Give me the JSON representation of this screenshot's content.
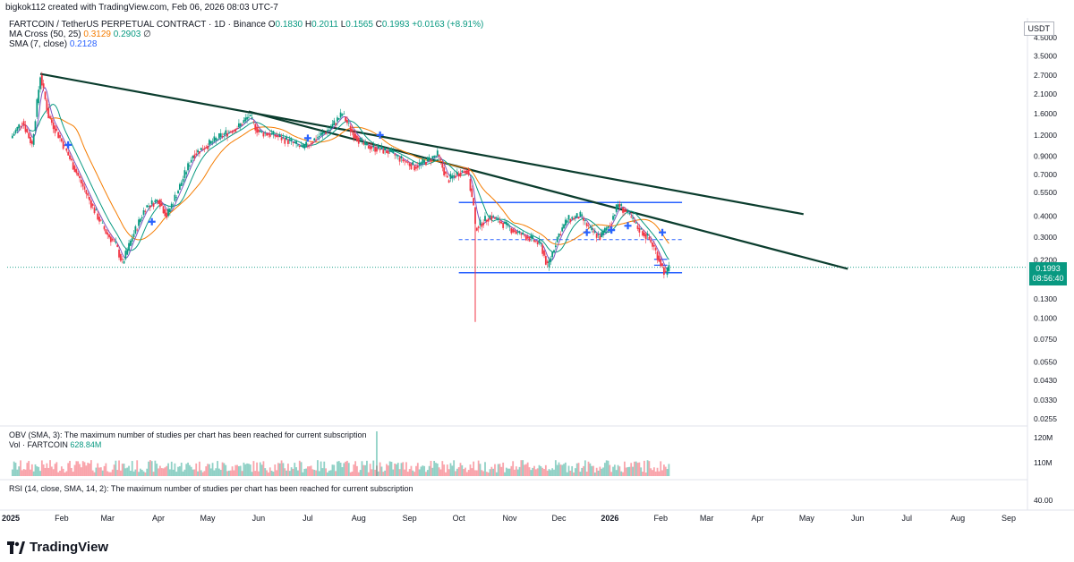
{
  "header": {
    "author": "bigkok112 created with TradingView.com, Feb 06, 2026 08:03 UTC-7"
  },
  "legend": {
    "symbol": "FARTCOIN / TetherUS PERPETUAL CONTRACT · 1D · Binance",
    "o_label": "O",
    "o": "0.1830",
    "h_label": "H",
    "h": "0.2011",
    "l_label": "L",
    "l": "0.1565",
    "c_label": "C",
    "c": "0.1993",
    "change": "+0.0163 (+8.91%)",
    "ma_cross": "MA Cross (50, 25)",
    "ma_a": "0.3129",
    "ma_b": "0.2903",
    "ma_symbol": "∅",
    "sma": "SMA (7, close)",
    "sma_val": "0.2128"
  },
  "currency": "USDT",
  "last_price": "0.1993",
  "countdown": "08:56:40",
  "obv_label": "OBV (SMA, 3): The maximum number of studies per chart has been reached for current subscription",
  "vol_label": "Vol · FARTCOIN",
  "vol_val": "628.84M",
  "rsi_label": "RSI (14, close, SMA, 14, 2): The maximum number of studies per chart has been reached for current subscription",
  "brand": "TradingView",
  "colors": {
    "up": "#089981",
    "down": "#f23645",
    "ma_fast": "#f57c00",
    "ma_slow": "#089981",
    "sma": "#2962ff",
    "trend": "#0b3d2e",
    "level": "#2962ff"
  },
  "chart_data": {
    "type": "line",
    "scale": "log",
    "price_axis": [
      "4.5000",
      "3.5000",
      "2.7000",
      "2.1000",
      "1.6000",
      "1.2000",
      "0.9000",
      "0.7000",
      "0.5500",
      "0.4000",
      "0.3000",
      "0.2200",
      "0.1700",
      "0.1300",
      "0.1000",
      "0.0750",
      "0.0550",
      "0.0430",
      "0.0330",
      "0.0255"
    ],
    "time_axis": [
      "2025",
      "Feb",
      "Mar",
      "Apr",
      "May",
      "Jun",
      "Jul",
      "Aug",
      "Sep",
      "Oct",
      "Nov",
      "Dec",
      "2026",
      "Feb",
      "Mar",
      "Apr",
      "May",
      "Jun",
      "Jul",
      "Aug",
      "Sep"
    ],
    "volume_axis": [
      "120M",
      "110M"
    ],
    "rsi_axis": [
      "40.00"
    ],
    "series": [
      {
        "name": "FARTCOIN / TetherUS PERPETUAL CONTRACT",
        "points": [
          [
            "2025-01-01",
            1.15
          ],
          [
            "2025-01-08",
            1.45
          ],
          [
            "2025-01-14",
            1.05
          ],
          [
            "2025-01-19",
            2.7
          ],
          [
            "2025-01-24",
            1.55
          ],
          [
            "2025-02-01",
            1.1
          ],
          [
            "2025-02-10",
            0.72
          ],
          [
            "2025-02-20",
            0.45
          ],
          [
            "2025-02-28",
            0.32
          ],
          [
            "2025-03-06",
            0.27
          ],
          [
            "2025-03-10",
            0.21
          ],
          [
            "2025-03-16",
            0.3
          ],
          [
            "2025-03-24",
            0.45
          ],
          [
            "2025-04-01",
            0.5
          ],
          [
            "2025-04-06",
            0.4
          ],
          [
            "2025-04-14",
            0.6
          ],
          [
            "2025-04-22",
            0.92
          ],
          [
            "2025-05-01",
            1.05
          ],
          [
            "2025-05-10",
            1.2
          ],
          [
            "2025-05-20",
            1.35
          ],
          [
            "2025-05-26",
            1.55
          ],
          [
            "2025-06-01",
            1.25
          ],
          [
            "2025-06-10",
            1.2
          ],
          [
            "2025-06-20",
            1.1
          ],
          [
            "2025-06-28",
            1.0
          ],
          [
            "2025-07-06",
            1.15
          ],
          [
            "2025-07-14",
            1.3
          ],
          [
            "2025-07-22",
            1.6
          ],
          [
            "2025-07-28",
            1.25
          ],
          [
            "2025-08-04",
            1.05
          ],
          [
            "2025-08-12",
            1.0
          ],
          [
            "2025-08-20",
            0.95
          ],
          [
            "2025-08-28",
            0.85
          ],
          [
            "2025-09-04",
            0.78
          ],
          [
            "2025-09-12",
            0.85
          ],
          [
            "2025-09-18",
            0.92
          ],
          [
            "2025-09-24",
            0.65
          ],
          [
            "2025-10-01",
            0.72
          ],
          [
            "2025-10-06",
            0.75
          ],
          [
            "2025-10-10",
            0.45
          ],
          [
            "2025-10-11",
            0.34
          ],
          [
            "2025-10-20",
            0.4
          ],
          [
            "2025-10-28",
            0.36
          ],
          [
            "2025-11-05",
            0.32
          ],
          [
            "2025-11-12",
            0.3
          ],
          [
            "2025-11-20",
            0.27
          ],
          [
            "2025-11-24",
            0.2
          ],
          [
            "2025-11-30",
            0.3
          ],
          [
            "2025-12-06",
            0.38
          ],
          [
            "2025-12-14",
            0.4
          ],
          [
            "2025-12-20",
            0.33
          ],
          [
            "2025-12-26",
            0.3
          ],
          [
            "2026-01-01",
            0.36
          ],
          [
            "2026-01-06",
            0.47
          ],
          [
            "2026-01-12",
            0.41
          ],
          [
            "2026-01-18",
            0.34
          ],
          [
            "2026-01-24",
            0.3
          ],
          [
            "2026-01-28",
            0.26
          ],
          [
            "2026-02-01",
            0.21
          ],
          [
            "2026-02-04",
            0.18
          ],
          [
            "2026-02-06",
            0.1993
          ]
        ]
      }
    ],
    "levels": [
      0.48,
      0.29,
      0.222,
      0.205,
      0.185
    ]
  }
}
